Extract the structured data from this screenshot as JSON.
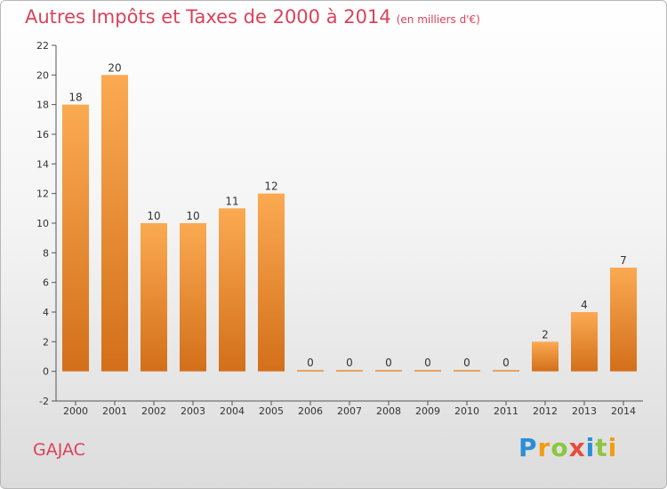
{
  "title": "Autres Impôts et Taxes de 2000 à 2014",
  "subtitle": "(en milliers d'€)",
  "commune": "GAJAC",
  "logo": {
    "letters": [
      {
        "ch": "P",
        "color": "#2a8fd6"
      },
      {
        "ch": "r",
        "color": "#f39c12"
      },
      {
        "ch": "o",
        "color": "#8cc63f"
      },
      {
        "ch": "x",
        "color": "#e74c3c"
      },
      {
        "ch": "i",
        "color": "#2a8fd6"
      },
      {
        "ch": "t",
        "color": "#8cc63f"
      },
      {
        "ch": "i",
        "color": "#f39c12"
      }
    ]
  },
  "colors": {
    "bar_top": "#fbaa52",
    "bar_bottom": "#d36f1a",
    "title": "#d9425a"
  },
  "chart_data": {
    "type": "bar",
    "categories": [
      "2000",
      "2001",
      "2002",
      "2003",
      "2004",
      "2005",
      "2006",
      "2007",
      "2008",
      "2009",
      "2010",
      "2011",
      "2012",
      "2013",
      "2014"
    ],
    "values": [
      18,
      20,
      10,
      10,
      11,
      12,
      0,
      0,
      0,
      0,
      0,
      0,
      2,
      4,
      7
    ],
    "ylim": [
      -2,
      22
    ],
    "yticks": [
      -2,
      0,
      2,
      4,
      6,
      8,
      10,
      12,
      14,
      16,
      18,
      20,
      22
    ],
    "grid": false
  }
}
